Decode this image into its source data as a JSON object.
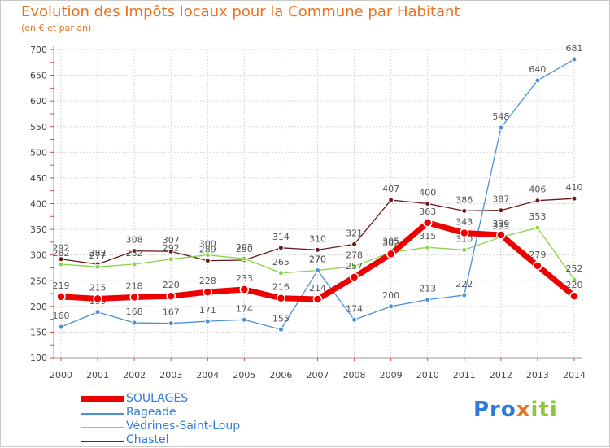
{
  "title": "Evolution des Impôts locaux pour la Commune par Habitant",
  "subtitle": "(en € et par an)",
  "logo_text": "Proxiti",
  "chart_data": {
    "type": "line",
    "title": "Evolution des Impôts locaux pour la Commune par Habitant",
    "subtitle": "(en € et par an)",
    "xlabel": "",
    "ylabel": "",
    "ylim": [
      100,
      700
    ],
    "yticks": [
      100,
      150,
      200,
      250,
      300,
      350,
      400,
      450,
      500,
      550,
      600,
      650,
      700
    ],
    "grid": true,
    "legend_position": "bottom-left",
    "categories": [
      "2000",
      "2001",
      "2002",
      "2003",
      "2004",
      "2005",
      "2006",
      "2007",
      "2008",
      "2009",
      "2010",
      "2011",
      "2012",
      "2013",
      "2014"
    ],
    "series": [
      {
        "name": "SOULAGES",
        "color": "#ee0000",
        "values": [
          219,
          215,
          218,
          220,
          228,
          233,
          216,
          214,
          257,
          302,
          363,
          343,
          339,
          279,
          220
        ]
      },
      {
        "name": "Rageade",
        "color": "#4a90d9",
        "values": [
          160,
          189,
          168,
          167,
          171,
          174,
          155,
          270,
          174,
          200,
          213,
          222,
          548,
          640,
          681
        ]
      },
      {
        "name": "Védrines-Saint-Loup",
        "color": "#88d44a",
        "values": [
          282,
          277,
          282,
          292,
          300,
          293,
          265,
          270,
          278,
          305,
          315,
          310,
          335,
          353,
          252
        ]
      },
      {
        "name": "Chastel",
        "color": "#6b1a1a",
        "values": [
          292,
          282,
          308,
          307,
          289,
          290,
          314,
          310,
          321,
          407,
          400,
          386,
          387,
          406,
          410
        ]
      }
    ]
  }
}
